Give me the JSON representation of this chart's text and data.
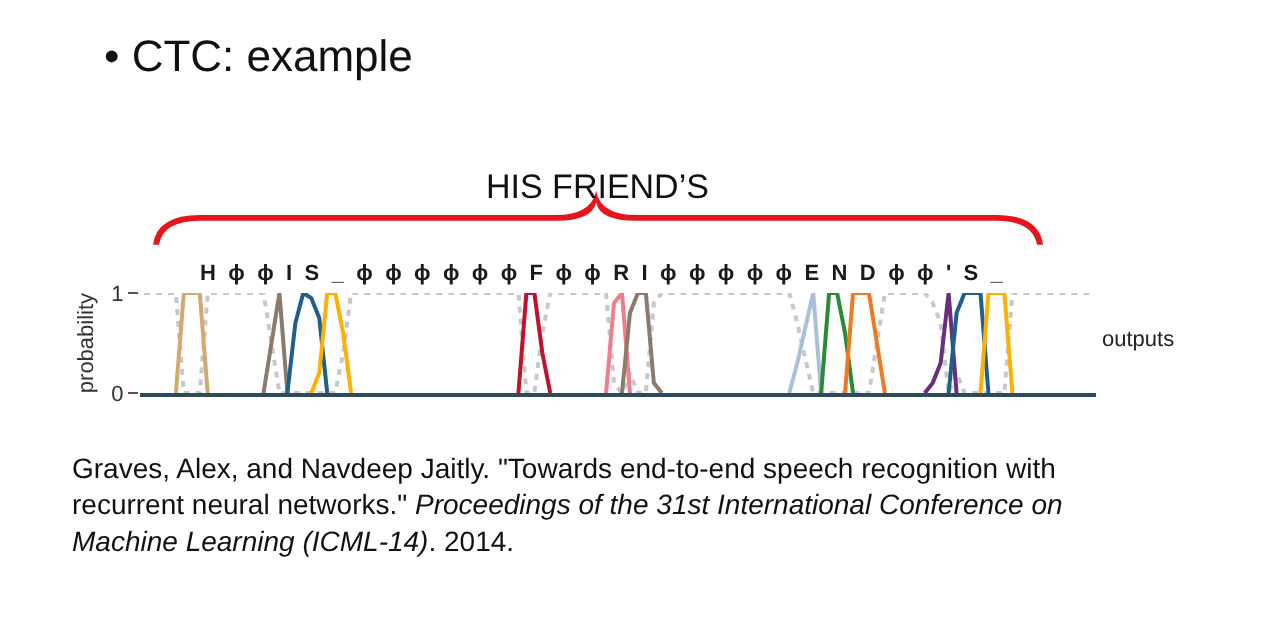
{
  "chart_data": {
    "type": "line",
    "title": "• CTC: example",
    "ylabel": "probability",
    "annotations": [
      "HIS FRIEND’S",
      "HϕϕIS_ϕϕϕϕϕϕFϕϕRIϕϕϕϕϕENDϕϕ'S_",
      "outputs",
      "Graves, Alex, and Navdeep Jaitly. \"Towards end-to-end speech recognition with recurrent neural networks.\"",
      "Proceedings of the 31st International Conference on Machine Learning (ICML-14)",
      ". 2014."
    ],
    "categories": [
      null,
      null,
      null,
      null,
      null,
      null,
      null,
      null,
      null,
      null,
      null,
      null,
      null,
      null,
      null,
      null,
      null,
      null,
      null,
      null,
      null,
      null,
      null,
      null,
      null,
      null,
      null,
      null,
      null,
      null,
      null,
      null,
      null,
      null,
      null,
      null,
      null,
      null,
      null,
      null,
      null,
      null,
      null,
      null,
      null,
      null,
      null,
      null,
      null,
      null,
      null,
      null,
      null,
      null,
      null,
      null,
      null,
      null,
      null,
      null,
      null,
      null,
      null,
      null,
      null,
      null,
      null,
      null,
      null,
      null,
      null,
      null,
      null,
      null,
      null,
      null,
      null,
      null,
      null,
      null,
      null,
      null,
      null,
      null,
      null,
      null,
      null,
      null,
      null,
      null,
      null,
      null,
      null,
      null,
      null,
      null,
      null,
      null,
      null,
      null,
      null,
      null,
      null,
      null,
      null,
      null,
      null,
      null,
      null,
      null,
      null,
      null,
      null,
      null,
      null,
      null,
      null,
      null,
      null,
      null
    ],
    "ylim": [
      0,
      1
    ],
    "yticks": [
      0,
      1
    ],
    "tick_labels": "y",
    "marker": "none",
    "line_style": "solid",
    "series": [
      {
        "color": "#c8c8c8",
        "line_style": "dotted",
        "values": [
          1,
          1,
          1,
          1,
          1,
          0,
          0,
          0,
          1,
          1,
          1,
          1,
          1,
          1,
          1,
          1,
          0.5,
          0,
          0,
          0,
          0,
          0,
          0,
          0,
          0,
          0.4,
          1,
          1,
          1,
          1,
          1,
          1,
          1,
          1,
          1,
          1,
          1,
          1,
          1,
          1,
          1,
          1,
          1,
          1,
          1,
          1,
          1,
          1,
          0,
          0,
          0.6,
          1,
          1,
          1,
          1,
          1,
          1,
          1,
          1,
          0.1,
          0,
          0.2,
          0,
          0,
          0.9,
          1,
          1,
          1,
          1,
          1,
          1,
          1,
          1,
          1,
          1,
          1,
          1,
          1,
          1,
          1,
          1,
          1,
          0.7,
          0.35,
          0,
          0,
          0,
          0,
          0,
          0,
          0,
          0,
          0.5,
          1,
          1,
          1,
          1,
          1,
          1,
          0.9,
          0.7,
          0,
          0.2,
          0,
          0,
          0,
          0,
          0,
          0,
          1,
          1,
          1,
          1,
          1,
          1,
          1,
          1,
          1,
          1,
          1
        ]
      },
      {
        "color": "#d2aa6e",
        "values": [
          null,
          null,
          null,
          null,
          0,
          1,
          1,
          1,
          0,
          null,
          null,
          null,
          null,
          null,
          null,
          null,
          null,
          null,
          null,
          null,
          null,
          null,
          null,
          null,
          null,
          null,
          null,
          null,
          null,
          null,
          null,
          null,
          null,
          null,
          null,
          null,
          null,
          null,
          null,
          null,
          null,
          null,
          null,
          null,
          null,
          null,
          null,
          null,
          null,
          null,
          null,
          null,
          null,
          null,
          null,
          null,
          null,
          null,
          null,
          null,
          null,
          null,
          null,
          null,
          null,
          null,
          null,
          null,
          null,
          null,
          null,
          null,
          null,
          null,
          null,
          null,
          null,
          null,
          null,
          null,
          null,
          null,
          null,
          null,
          null,
          null,
          null,
          null,
          null,
          null,
          null,
          null,
          null,
          null,
          null,
          null,
          null,
          null,
          null,
          null,
          null,
          null,
          null,
          null,
          null,
          null,
          null,
          null,
          null,
          null,
          null,
          null,
          null,
          null,
          null,
          null,
          null,
          null,
          null,
          null
        ]
      },
      {
        "color": "#8c7b6b",
        "values": [
          null,
          null,
          null,
          null,
          null,
          null,
          null,
          null,
          null,
          null,
          null,
          null,
          null,
          null,
          null,
          0,
          0.5,
          1,
          0,
          null,
          null,
          null,
          null,
          null,
          null,
          null,
          null,
          null,
          null,
          null,
          null,
          null,
          null,
          null,
          null,
          null,
          null,
          null,
          null,
          null,
          null,
          null,
          null,
          null,
          null,
          null,
          null,
          null,
          null,
          null,
          null,
          null,
          null,
          null,
          null,
          null,
          null,
          null,
          null,
          null,
          null,
          null,
          null,
          null,
          null,
          null,
          null,
          null,
          null,
          null,
          null,
          null,
          null,
          null,
          null,
          null,
          null,
          null,
          null,
          null,
          null,
          null,
          null,
          null,
          null,
          null,
          null,
          null,
          null,
          null,
          null,
          null,
          null,
          null,
          null,
          null,
          null,
          null,
          null,
          null,
          null,
          null,
          null,
          null,
          null,
          null,
          null,
          null,
          null,
          null,
          null,
          null,
          null,
          null,
          null,
          null,
          null,
          null,
          null,
          null
        ]
      },
      {
        "color": "#1f5f8b",
        "values": [
          null,
          null,
          null,
          null,
          null,
          null,
          null,
          null,
          null,
          null,
          null,
          null,
          null,
          null,
          null,
          null,
          null,
          null,
          0,
          0.7,
          1,
          0.95,
          0.75,
          0,
          null,
          null,
          null,
          null,
          null,
          null,
          null,
          null,
          null,
          null,
          null,
          null,
          null,
          null,
          null,
          null,
          null,
          null,
          null,
          null,
          null,
          null,
          null,
          null,
          null,
          null,
          null,
          null,
          null,
          null,
          null,
          null,
          null,
          null,
          null,
          null,
          null,
          null,
          null,
          null,
          null,
          null,
          null,
          null,
          null,
          null,
          null,
          null,
          null,
          null,
          null,
          null,
          null,
          null,
          null,
          null,
          null,
          null,
          null,
          null,
          null,
          null,
          null,
          null,
          null,
          null,
          null,
          null,
          null,
          null,
          null,
          null,
          null,
          null,
          null,
          null,
          null,
          null,
          null,
          null,
          null,
          null,
          null,
          null,
          null,
          null,
          null,
          null,
          null,
          null,
          null,
          null,
          null,
          null,
          null,
          null
        ]
      },
      {
        "color": "#ffb000",
        "values": [
          null,
          null,
          null,
          null,
          null,
          null,
          null,
          null,
          null,
          null,
          null,
          null,
          null,
          null,
          null,
          null,
          null,
          null,
          null,
          null,
          null,
          0,
          0.2,
          1,
          1,
          0.6,
          0,
          null,
          null,
          null,
          null,
          null,
          null,
          null,
          null,
          null,
          null,
          null,
          null,
          null,
          null,
          null,
          null,
          null,
          null,
          null,
          null,
          null,
          null,
          null,
          null,
          null,
          null,
          null,
          null,
          null,
          null,
          null,
          null,
          null,
          null,
          null,
          null,
          null,
          null,
          null,
          null,
          null,
          null,
          null,
          null,
          null,
          null,
          null,
          null,
          null,
          null,
          null,
          null,
          null,
          null,
          null,
          null,
          null,
          null,
          null,
          null,
          null,
          null,
          null,
          null,
          null,
          null,
          null,
          null,
          null,
          null,
          null,
          null,
          null,
          null,
          null,
          null,
          null,
          null,
          null,
          null,
          null,
          null,
          null,
          null,
          null,
          null,
          null,
          null,
          null,
          null,
          null,
          null,
          null
        ]
      },
      {
        "color": "#c0122c",
        "values": [
          null,
          null,
          null,
          null,
          null,
          null,
          null,
          null,
          null,
          null,
          null,
          null,
          null,
          null,
          null,
          null,
          null,
          null,
          null,
          null,
          null,
          null,
          null,
          null,
          null,
          null,
          null,
          null,
          null,
          null,
          null,
          null,
          null,
          null,
          null,
          null,
          null,
          null,
          null,
          null,
          null,
          null,
          null,
          null,
          null,
          null,
          null,
          0,
          1,
          1,
          0.4,
          0,
          null,
          null,
          null,
          null,
          null,
          null,
          null,
          null,
          null,
          null,
          null,
          null,
          null,
          null,
          null,
          null,
          null,
          null,
          null,
          null,
          null,
          null,
          null,
          null,
          null,
          null,
          null,
          null,
          null,
          null,
          null,
          null,
          null,
          null,
          null,
          null,
          null,
          null,
          null,
          null,
          null,
          null,
          null,
          null,
          null,
          null,
          null,
          null,
          null,
          null,
          null,
          null,
          null,
          null,
          null,
          null,
          null,
          null,
          null,
          null,
          null,
          null,
          null,
          null,
          null,
          null,
          null,
          null
        ]
      },
      {
        "color": "#f07e8c",
        "values": [
          null,
          null,
          null,
          null,
          null,
          null,
          null,
          null,
          null,
          null,
          null,
          null,
          null,
          null,
          null,
          null,
          null,
          null,
          null,
          null,
          null,
          null,
          null,
          null,
          null,
          null,
          null,
          null,
          null,
          null,
          null,
          null,
          null,
          null,
          null,
          null,
          null,
          null,
          null,
          null,
          null,
          null,
          null,
          null,
          null,
          null,
          null,
          null,
          null,
          null,
          null,
          null,
          null,
          null,
          null,
          null,
          null,
          null,
          0,
          0.9,
          1,
          0,
          null,
          null,
          null,
          null,
          null,
          null,
          null,
          null,
          null,
          null,
          null,
          null,
          null,
          null,
          null,
          null,
          null,
          null,
          null,
          null,
          null,
          null,
          null,
          null,
          null,
          null,
          null,
          null,
          null,
          null,
          null,
          null,
          null,
          null,
          null,
          null,
          null,
          null,
          null,
          null,
          null,
          null,
          null,
          null,
          null,
          null,
          null,
          null,
          null,
          null,
          null,
          null,
          null,
          null,
          null,
          null,
          null,
          null
        ]
      },
      {
        "color": "#8c7b6b",
        "values": [
          null,
          null,
          null,
          null,
          null,
          null,
          null,
          null,
          null,
          null,
          null,
          null,
          null,
          null,
          null,
          null,
          null,
          null,
          null,
          null,
          null,
          null,
          null,
          null,
          null,
          null,
          null,
          null,
          null,
          null,
          null,
          null,
          null,
          null,
          null,
          null,
          null,
          null,
          null,
          null,
          null,
          null,
          null,
          null,
          null,
          null,
          null,
          null,
          null,
          null,
          null,
          null,
          null,
          null,
          null,
          null,
          null,
          null,
          null,
          null,
          0,
          0.8,
          1,
          1,
          0.1,
          0,
          null,
          null,
          null,
          null,
          null,
          null,
          null,
          null,
          null,
          null,
          null,
          null,
          null,
          null,
          null,
          null,
          null,
          null,
          null,
          null,
          null,
          null,
          null,
          null,
          null,
          null,
          null,
          null,
          null,
          null,
          null,
          null,
          null,
          null,
          null,
          null,
          null,
          null,
          null,
          null,
          null,
          null,
          null,
          null,
          null,
          null,
          null,
          null,
          null,
          null,
          null,
          null,
          null,
          null
        ]
      },
      {
        "color": "#a8c0dc",
        "values": [
          null,
          null,
          null,
          null,
          null,
          null,
          null,
          null,
          null,
          null,
          null,
          null,
          null,
          null,
          null,
          null,
          null,
          null,
          null,
          null,
          null,
          null,
          null,
          null,
          null,
          null,
          null,
          null,
          null,
          null,
          null,
          null,
          null,
          null,
          null,
          null,
          null,
          null,
          null,
          null,
          null,
          null,
          null,
          null,
          null,
          null,
          null,
          null,
          null,
          null,
          null,
          null,
          null,
          null,
          null,
          null,
          null,
          null,
          null,
          null,
          null,
          null,
          null,
          null,
          null,
          null,
          null,
          null,
          null,
          null,
          null,
          null,
          null,
          null,
          null,
          null,
          null,
          null,
          null,
          null,
          null,
          0,
          0.3,
          0.65,
          1,
          0,
          null,
          null,
          null,
          null,
          null,
          null,
          null,
          null,
          null,
          null,
          null,
          null,
          null,
          null,
          null,
          null,
          null,
          null,
          null,
          null,
          null,
          null,
          null,
          null,
          null,
          null,
          null,
          null,
          null,
          null,
          null,
          null,
          null,
          null
        ]
      },
      {
        "color": "#2a8a3a",
        "values": [
          null,
          null,
          null,
          null,
          null,
          null,
          null,
          null,
          null,
          null,
          null,
          null,
          null,
          null,
          null,
          null,
          null,
          null,
          null,
          null,
          null,
          null,
          null,
          null,
          null,
          null,
          null,
          null,
          null,
          null,
          null,
          null,
          null,
          null,
          null,
          null,
          null,
          null,
          null,
          null,
          null,
          null,
          null,
          null,
          null,
          null,
          null,
          null,
          null,
          null,
          null,
          null,
          null,
          null,
          null,
          null,
          null,
          null,
          null,
          null,
          null,
          null,
          null,
          null,
          null,
          null,
          null,
          null,
          null,
          null,
          null,
          null,
          null,
          null,
          null,
          null,
          null,
          null,
          null,
          null,
          null,
          null,
          null,
          null,
          null,
          0,
          1,
          1,
          0.6,
          0,
          null,
          null,
          null,
          null,
          null,
          null,
          null,
          null,
          null,
          null,
          null,
          null,
          null,
          null,
          null,
          null,
          null,
          null,
          null,
          null,
          null,
          null,
          null,
          null,
          null,
          null,
          null,
          null,
          null,
          null
        ]
      },
      {
        "color": "#f07a20",
        "values": [
          null,
          null,
          null,
          null,
          null,
          null,
          null,
          null,
          null,
          null,
          null,
          null,
          null,
          null,
          null,
          null,
          null,
          null,
          null,
          null,
          null,
          null,
          null,
          null,
          null,
          null,
          null,
          null,
          null,
          null,
          null,
          null,
          null,
          null,
          null,
          null,
          null,
          null,
          null,
          null,
          null,
          null,
          null,
          null,
          null,
          null,
          null,
          null,
          null,
          null,
          null,
          null,
          null,
          null,
          null,
          null,
          null,
          null,
          null,
          null,
          null,
          null,
          null,
          null,
          null,
          null,
          null,
          null,
          null,
          null,
          null,
          null,
          null,
          null,
          null,
          null,
          null,
          null,
          null,
          null,
          null,
          null,
          null,
          null,
          null,
          null,
          null,
          null,
          0,
          1,
          1,
          1,
          0.5,
          0,
          null,
          null,
          null,
          null,
          null,
          null,
          null,
          null,
          null,
          null,
          null,
          null,
          null,
          null,
          null,
          null,
          null,
          null,
          null,
          null,
          null,
          null,
          null,
          null,
          null,
          null
        ]
      },
      {
        "color": "#6a2f7a",
        "values": [
          null,
          null,
          null,
          null,
          null,
          null,
          null,
          null,
          null,
          null,
          null,
          null,
          null,
          null,
          null,
          null,
          null,
          null,
          null,
          null,
          null,
          null,
          null,
          null,
          null,
          null,
          null,
          null,
          null,
          null,
          null,
          null,
          null,
          null,
          null,
          null,
          null,
          null,
          null,
          null,
          null,
          null,
          null,
          null,
          null,
          null,
          null,
          null,
          null,
          null,
          null,
          null,
          null,
          null,
          null,
          null,
          null,
          null,
          null,
          null,
          null,
          null,
          null,
          null,
          null,
          null,
          null,
          null,
          null,
          null,
          null,
          null,
          null,
          null,
          null,
          null,
          null,
          null,
          null,
          null,
          null,
          null,
          null,
          null,
          null,
          null,
          null,
          null,
          null,
          null,
          null,
          null,
          null,
          null,
          null,
          null,
          null,
          null,
          0,
          0.1,
          0.3,
          1,
          0,
          null,
          null,
          null,
          null,
          null,
          null,
          null,
          null,
          null,
          null,
          null,
          null,
          null,
          null,
          null,
          null,
          null
        ]
      },
      {
        "color": "#1f5f8b",
        "values": [
          null,
          null,
          null,
          null,
          null,
          null,
          null,
          null,
          null,
          null,
          null,
          null,
          null,
          null,
          null,
          null,
          null,
          null,
          null,
          null,
          null,
          null,
          null,
          null,
          null,
          null,
          null,
          null,
          null,
          null,
          null,
          null,
          null,
          null,
          null,
          null,
          null,
          null,
          null,
          null,
          null,
          null,
          null,
          null,
          null,
          null,
          null,
          null,
          null,
          null,
          null,
          null,
          null,
          null,
          null,
          null,
          null,
          null,
          null,
          null,
          null,
          null,
          null,
          null,
          null,
          null,
          null,
          null,
          null,
          null,
          null,
          null,
          null,
          null,
          null,
          null,
          null,
          null,
          null,
          null,
          null,
          null,
          null,
          null,
          null,
          null,
          null,
          null,
          null,
          null,
          null,
          null,
          null,
          null,
          null,
          null,
          null,
          null,
          null,
          null,
          null,
          0,
          0.8,
          1,
          1,
          1,
          0,
          null,
          null,
          null,
          null,
          null,
          null,
          null,
          null,
          null,
          null,
          null,
          null,
          null
        ]
      },
      {
        "color": "#ffb000",
        "values": [
          null,
          null,
          null,
          null,
          null,
          null,
          null,
          null,
          null,
          null,
          null,
          null,
          null,
          null,
          null,
          null,
          null,
          null,
          null,
          null,
          null,
          null,
          null,
          null,
          null,
          null,
          null,
          null,
          null,
          null,
          null,
          null,
          null,
          null,
          null,
          null,
          null,
          null,
          null,
          null,
          null,
          null,
          null,
          null,
          null,
          null,
          null,
          null,
          null,
          null,
          null,
          null,
          null,
          null,
          null,
          null,
          null,
          null,
          null,
          null,
          null,
          null,
          null,
          null,
          null,
          null,
          null,
          null,
          null,
          null,
          null,
          null,
          null,
          null,
          null,
          null,
          null,
          null,
          null,
          null,
          null,
          null,
          null,
          null,
          null,
          null,
          null,
          null,
          null,
          null,
          null,
          null,
          null,
          null,
          null,
          null,
          null,
          null,
          null,
          null,
          null,
          null,
          null,
          null,
          null,
          0,
          1,
          1,
          1,
          0,
          null,
          null,
          null,
          null,
          null,
          null,
          null,
          null,
          null,
          null
        ]
      }
    ]
  }
}
